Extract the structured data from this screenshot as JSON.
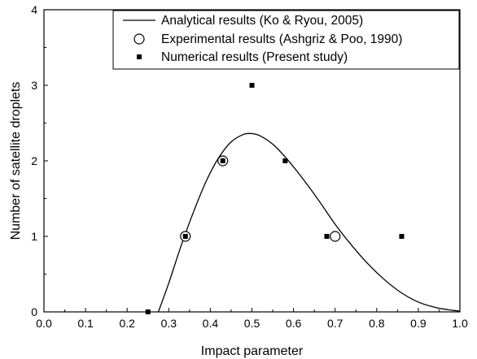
{
  "chart_data": {
    "type": "scatter",
    "xlabel": "Impact parameter",
    "ylabel": "Number of satellite droplets",
    "xlim": [
      0.0,
      1.0
    ],
    "ylim": [
      0,
      4
    ],
    "x_ticks": [
      "0.0",
      "0.1",
      "0.2",
      "0.3",
      "0.4",
      "0.5",
      "0.6",
      "0.7",
      "0.8",
      "0.9",
      "1.0"
    ],
    "y_ticks": [
      "0",
      "1",
      "2",
      "3",
      "4"
    ],
    "grid": false,
    "legend_position": "top-right",
    "series": [
      {
        "name": "Analytical results (Ko & Ryou, 2005)",
        "style": "line",
        "color": "#000000",
        "x": [
          0.275,
          0.3,
          0.33,
          0.36,
          0.39,
          0.42,
          0.45,
          0.48,
          0.5,
          0.52,
          0.55,
          0.58,
          0.62,
          0.66,
          0.7,
          0.74,
          0.78,
          0.82,
          0.86,
          0.9,
          0.94,
          0.97,
          1.0
        ],
        "y": [
          0.0,
          0.38,
          0.88,
          1.33,
          1.73,
          2.04,
          2.25,
          2.35,
          2.36,
          2.33,
          2.22,
          2.05,
          1.78,
          1.48,
          1.16,
          0.88,
          0.63,
          0.42,
          0.25,
          0.13,
          0.06,
          0.03,
          0.01
        ]
      },
      {
        "name": "Experimental results (Ashgriz & Poo, 1990)",
        "style": "open-circle",
        "color": "#000000",
        "x": [
          0.34,
          0.43,
          0.7
        ],
        "y": [
          1,
          2,
          1
        ]
      },
      {
        "name": "Numerical results (Present study)",
        "style": "filled-square",
        "color": "#000000",
        "x": [
          0.25,
          0.34,
          0.43,
          0.5,
          0.58,
          0.68,
          0.86
        ],
        "y": [
          0,
          1,
          2,
          3,
          2,
          1,
          1
        ]
      }
    ]
  }
}
